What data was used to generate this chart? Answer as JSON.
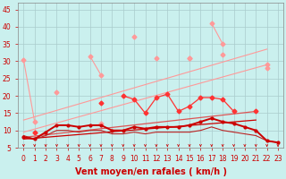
{
  "background": "#caf0ee",
  "grid_color": "#aacccc",
  "xlabel": "Vent moyen/en rafales ( km/h )",
  "ylim": [
    5,
    47
  ],
  "xlim": [
    -0.5,
    23.5
  ],
  "yticks": [
    5,
    10,
    15,
    20,
    25,
    30,
    35,
    40,
    45
  ],
  "x": [
    0,
    1,
    2,
    3,
    4,
    5,
    6,
    7,
    8,
    9,
    10,
    11,
    12,
    13,
    14,
    15,
    16,
    17,
    18,
    19,
    20,
    21,
    22,
    23
  ],
  "line_pink_top_y": [
    30.5,
    12.5,
    null,
    21,
    null,
    null,
    31.5,
    26,
    null,
    null,
    37,
    null,
    31,
    null,
    null,
    31,
    null,
    41,
    35,
    null,
    null,
    null,
    28,
    null
  ],
  "line_pink_top_color": "#ff9999",
  "line_pink_mid_y": [
    null,
    9.5,
    null,
    null,
    null,
    null,
    null,
    12,
    null,
    null,
    null,
    null,
    null,
    null,
    null,
    31,
    null,
    null,
    32,
    null,
    null,
    null,
    29,
    null
  ],
  "line_pink_mid_color": "#ff9999",
  "line_red_mid_y": [
    null,
    9.5,
    null,
    null,
    null,
    null,
    null,
    18,
    null,
    20,
    19,
    15,
    19.5,
    20.5,
    15.5,
    17,
    19.5,
    19.5,
    19,
    15.5,
    null,
    15.5,
    null,
    null
  ],
  "line_red_mid_color": "#ff3333",
  "line_mean_y": [
    8,
    7.5,
    9.5,
    11.5,
    11.5,
    11,
    11.5,
    11.5,
    10,
    10,
    11,
    10.5,
    11,
    11,
    11,
    11.5,
    12.5,
    13.5,
    12.5,
    12,
    11,
    10,
    7,
    6.5
  ],
  "line_mean_color": "#cc0000",
  "line_lower_dark_y": [
    8.5,
    7.5,
    8.5,
    10,
    10,
    9.5,
    10,
    10,
    9,
    9,
    9.5,
    9,
    9.5,
    9.5,
    9.5,
    9.5,
    10,
    11,
    10,
    9.5,
    9,
    8.5,
    7,
    6.5
  ],
  "line_lower_color": "#cc3333",
  "trend1_x": [
    0,
    22
  ],
  "trend1_y": [
    13,
    33.5
  ],
  "trend2_x": [
    0,
    22
  ],
  "trend2_y": [
    9.5,
    29
  ],
  "trend3_x": [
    0,
    21
  ],
  "trend3_y": [
    8,
    15.5
  ],
  "trend4_x": [
    0,
    21
  ],
  "trend4_y": [
    7.5,
    13
  ],
  "trend_color": "#ff9999",
  "trend_dark_color": "#cc0000",
  "tick_fontsize": 5.5,
  "axis_fontsize": 7,
  "label_color": "#cc0000"
}
